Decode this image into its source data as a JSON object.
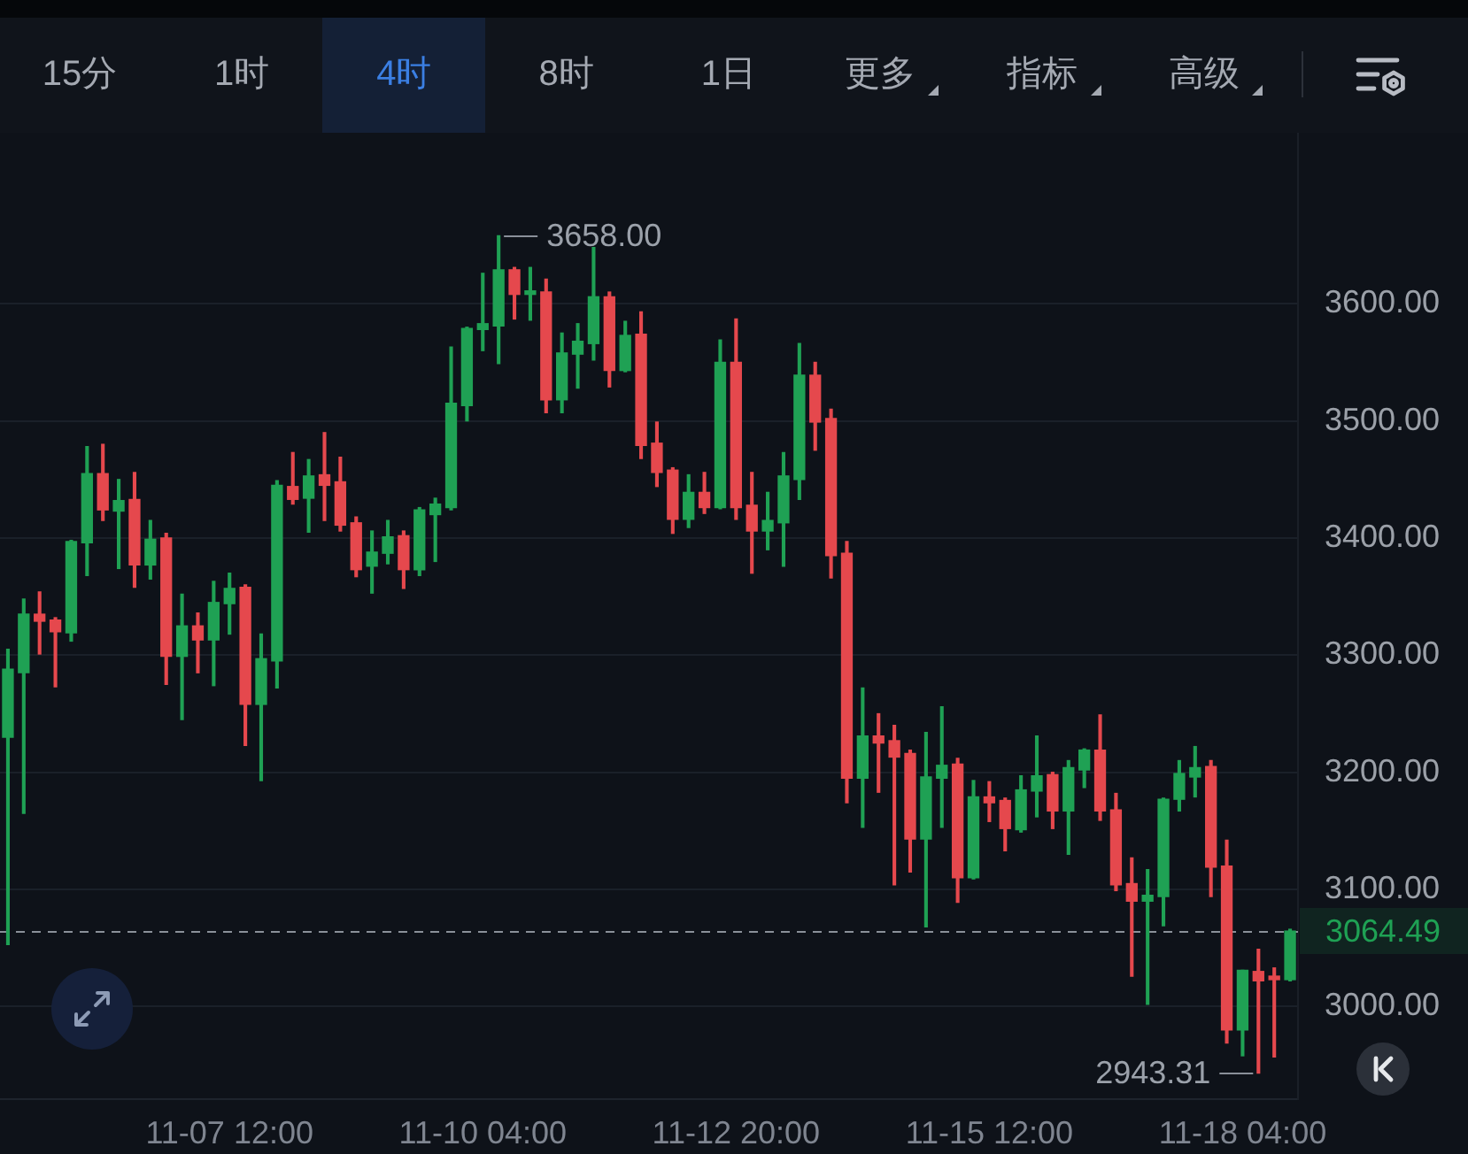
{
  "chart_data": {
    "type": "candlestick",
    "categories": [
      null,
      null,
      null,
      null,
      null,
      null,
      null,
      null,
      null,
      null,
      null,
      null,
      null,
      null,
      "11-07 12:00",
      null,
      null,
      null,
      null,
      null,
      null,
      null,
      null,
      null,
      null,
      null,
      null,
      null,
      null,
      null,
      "11-10 04:00",
      null,
      null,
      null,
      null,
      null,
      null,
      null,
      null,
      null,
      null,
      null,
      null,
      null,
      null,
      null,
      "11-12 20:00",
      null,
      null,
      null,
      null,
      null,
      null,
      null,
      null,
      null,
      null,
      null,
      null,
      null,
      null,
      null,
      "11-15 12:00",
      null,
      null,
      null,
      null,
      null,
      null,
      null,
      null,
      null,
      null,
      null,
      null,
      null,
      null,
      null,
      "11-18 04:00",
      null,
      null,
      null
    ],
    "ohlc": [
      [
        3230,
        3305,
        3053,
        3288
      ],
      [
        3285,
        3348,
        3165,
        3335
      ],
      [
        3335,
        3354,
        3301,
        3329
      ],
      [
        3330,
        3332,
        3273,
        3320
      ],
      [
        3319,
        3398,
        3312,
        3397
      ],
      [
        3396,
        3478,
        3368,
        3455
      ],
      [
        3455,
        3480,
        3415,
        3424
      ],
      [
        3423,
        3450,
        3374,
        3432
      ],
      [
        3433,
        3456,
        3358,
        3377
      ],
      [
        3377,
        3415,
        3365,
        3399
      ],
      [
        3400,
        3404,
        3275,
        3299
      ],
      [
        3299,
        3352,
        3245,
        3325
      ],
      [
        3325,
        3336,
        3285,
        3313
      ],
      [
        3313,
        3363,
        3274,
        3345
      ],
      [
        3344,
        3370,
        3318,
        3357
      ],
      [
        3358,
        3360,
        3223,
        3258
      ],
      [
        3258,
        3318,
        3193,
        3297
      ],
      [
        3295,
        3449,
        3272,
        3445
      ],
      [
        3444,
        3473,
        3429,
        3433
      ],
      [
        3434,
        3467,
        3405,
        3453
      ],
      [
        3454,
        3490,
        3415,
        3445
      ],
      [
        3448,
        3469,
        3406,
        3411
      ],
      [
        3413,
        3418,
        3367,
        3373
      ],
      [
        3376,
        3406,
        3353,
        3388
      ],
      [
        3387,
        3415,
        3378,
        3401
      ],
      [
        3402,
        3406,
        3357,
        3373
      ],
      [
        3373,
        3426,
        3368,
        3424
      ],
      [
        3420,
        3434,
        3380,
        3429
      ],
      [
        3426,
        3563,
        3424,
        3515
      ],
      [
        3513,
        3580,
        3500,
        3579
      ],
      [
        3578,
        3626,
        3560,
        3583
      ],
      [
        3581,
        3658,
        3549,
        3629
      ],
      [
        3629,
        3631,
        3587,
        3608
      ],
      [
        3608,
        3631,
        3586,
        3611
      ],
      [
        3610,
        3621,
        3507,
        3518
      ],
      [
        3518,
        3575,
        3507,
        3558
      ],
      [
        3557,
        3583,
        3528,
        3568
      ],
      [
        3566,
        3648,
        3552,
        3606
      ],
      [
        3606,
        3610,
        3529,
        3543
      ],
      [
        3543,
        3585,
        3542,
        3573
      ],
      [
        3574,
        3593,
        3468,
        3479
      ],
      [
        3481,
        3499,
        3444,
        3456
      ],
      [
        3458,
        3460,
        3404,
        3416
      ],
      [
        3416,
        3454,
        3409,
        3439
      ],
      [
        3439,
        3456,
        3421,
        3426
      ],
      [
        3426,
        3569,
        3425,
        3550
      ],
      [
        3550,
        3587,
        3416,
        3426
      ],
      [
        3428,
        3456,
        3370,
        3406
      ],
      [
        3406,
        3439,
        3390,
        3415
      ],
      [
        3413,
        3473,
        3376,
        3453
      ],
      [
        3450,
        3566,
        3433,
        3539
      ],
      [
        3539,
        3550,
        3475,
        3499
      ],
      [
        3502,
        3510,
        3366,
        3385
      ],
      [
        3387,
        3397,
        3174,
        3195
      ],
      [
        3195,
        3272,
        3153,
        3231
      ],
      [
        3231,
        3250,
        3183,
        3225
      ],
      [
        3227,
        3240,
        3104,
        3213
      ],
      [
        3216,
        3219,
        3115,
        3143
      ],
      [
        3143,
        3234,
        3068,
        3196
      ],
      [
        3195,
        3256,
        3153,
        3206
      ],
      [
        3207,
        3212,
        3089,
        3110
      ],
      [
        3110,
        3193,
        3109,
        3179
      ],
      [
        3179,
        3192,
        3158,
        3174
      ],
      [
        3176,
        3178,
        3133,
        3152
      ],
      [
        3151,
        3197,
        3149,
        3185
      ],
      [
        3184,
        3231,
        3162,
        3197
      ],
      [
        3198,
        3200,
        3152,
        3167
      ],
      [
        3167,
        3210,
        3130,
        3204
      ],
      [
        3202,
        3220,
        3187,
        3219
      ],
      [
        3219,
        3249,
        3159,
        3167
      ],
      [
        3168,
        3182,
        3099,
        3104
      ],
      [
        3105,
        3127,
        3026,
        3090
      ],
      [
        3090,
        3117,
        3002,
        3095
      ],
      [
        3094,
        3178,
        3069,
        3177
      ],
      [
        3177,
        3210,
        3167,
        3199
      ],
      [
        3196,
        3222,
        3179,
        3204
      ],
      [
        3205,
        3210,
        3094,
        3119
      ],
      [
        3120,
        3142,
        2969,
        2980
      ],
      [
        2980,
        3031,
        2958,
        3031
      ],
      [
        3030,
        3049,
        2943.31,
        3022
      ],
      [
        3026,
        3033,
        2957,
        3023
      ],
      [
        3023,
        3066,
        3022,
        3064.49
      ]
    ],
    "colors": [
      "#1fa154",
      "#1fa154",
      "#e5484d",
      "#e5484d",
      "#1fa154",
      "#1fa154",
      "#e5484d",
      "#1fa154",
      "#e5484d",
      "#1fa154",
      "#e5484d",
      "#1fa154",
      "#e5484d",
      "#1fa154",
      "#1fa154",
      "#e5484d",
      "#1fa154",
      "#1fa154",
      "#e5484d",
      "#1fa154",
      "#e5484d",
      "#e5484d",
      "#e5484d",
      "#1fa154",
      "#1fa154",
      "#e5484d",
      "#1fa154",
      "#1fa154",
      "#1fa154",
      "#1fa154",
      "#1fa154",
      "#1fa154",
      "#e5484d",
      "#1fa154",
      "#e5484d",
      "#1fa154",
      "#1fa154",
      "#1fa154",
      "#e5484d",
      "#1fa154",
      "#e5484d",
      "#e5484d",
      "#e5484d",
      "#1fa154",
      "#e5484d",
      "#1fa154",
      "#e5484d",
      "#e5484d",
      "#1fa154",
      "#1fa154",
      "#1fa154",
      "#e5484d",
      "#e5484d",
      "#e5484d",
      "#1fa154",
      "#e5484d",
      "#e5484d",
      "#e5484d",
      "#1fa154",
      "#1fa154",
      "#e5484d",
      "#1fa154",
      "#e5484d",
      "#e5484d",
      "#1fa154",
      "#1fa154",
      "#e5484d",
      "#1fa154",
      "#1fa154",
      "#e5484d",
      "#e5484d",
      "#e5484d",
      "#1fa154",
      "#1fa154",
      "#1fa154",
      "#1fa154",
      "#e5484d",
      "#e5484d",
      "#1fa154",
      "#e5484d",
      "#e5484d",
      "#1fa154"
    ],
    "ylim": [
      2921,
      3746
    ],
    "yticks": [
      {
        "value": 3000,
        "label": "3000.00"
      },
      {
        "value": 3100,
        "label": "3100.00"
      },
      {
        "value": 3200,
        "label": "3200.00"
      },
      {
        "value": 3300,
        "label": "3300.00"
      },
      {
        "value": 3400,
        "label": "3400.00"
      },
      {
        "value": 3500,
        "label": "3500.00"
      },
      {
        "value": 3600,
        "label": "3600.00"
      }
    ],
    "grid": "y",
    "ref_lines": [
      {
        "axis": "y",
        "value": 3064.49,
        "label": "3064.49",
        "color": "#8a9099",
        "line_style": "dashed"
      }
    ],
    "annotations": [
      "15分",
      "1时",
      "4时",
      "8时",
      "1日",
      "更多",
      "指标",
      "高级",
      "3658.00",
      "2943.31"
    ]
  }
}
